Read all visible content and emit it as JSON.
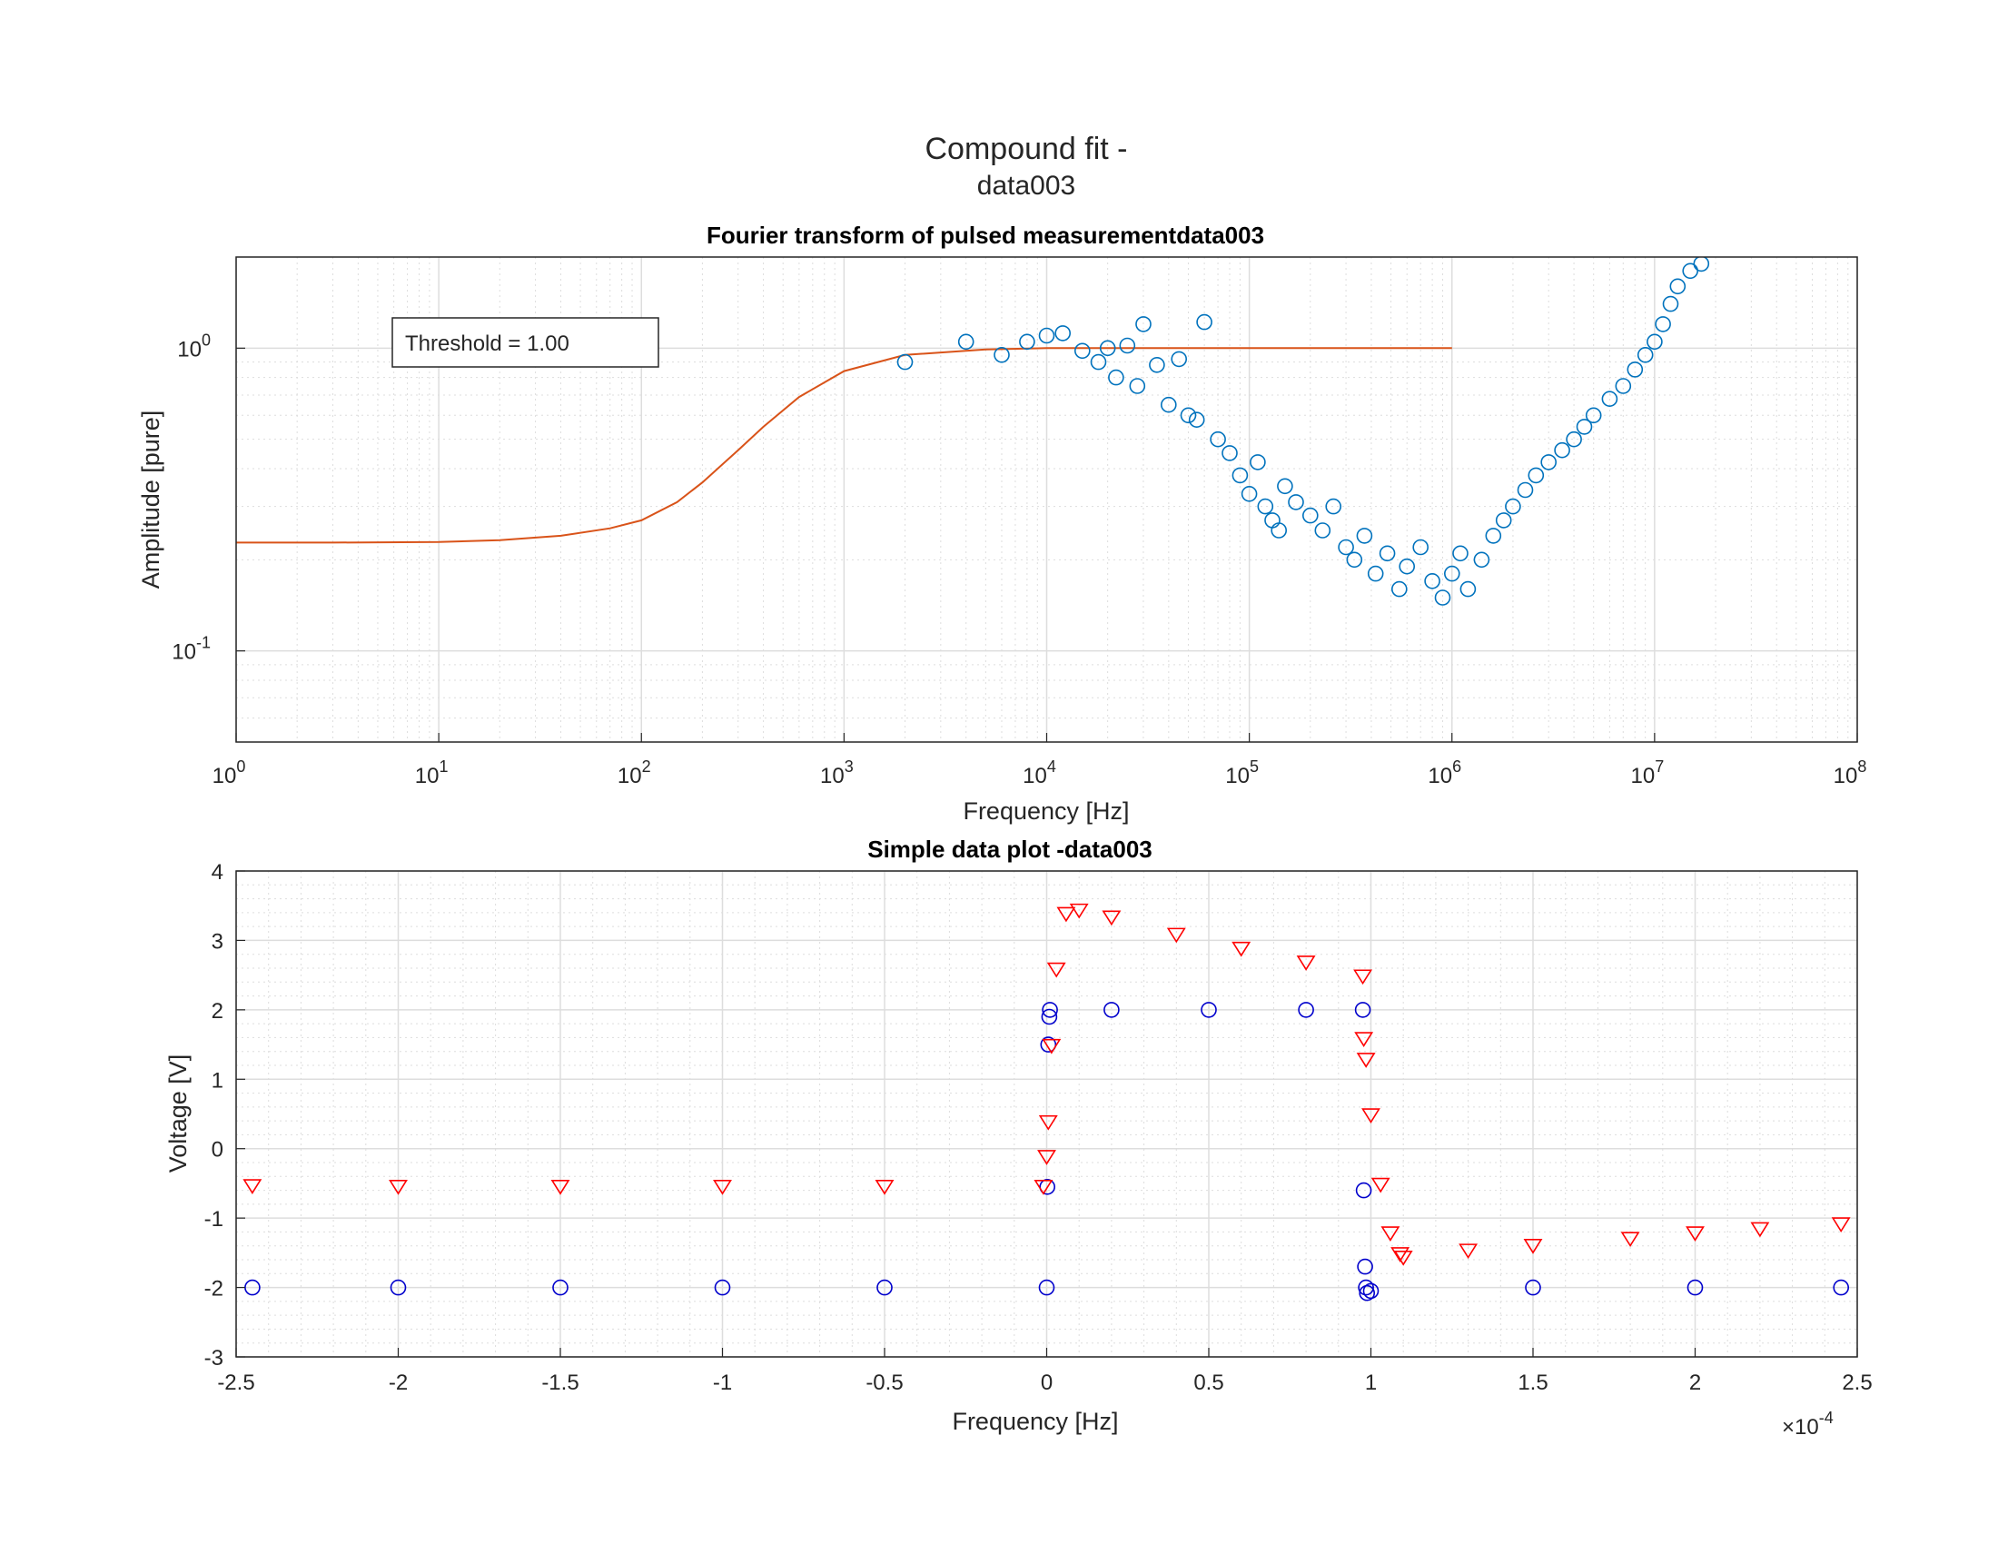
{
  "figure": {
    "suptitle_line1": "Compound fit -",
    "suptitle_line2": "data003",
    "colors": {
      "fft_markers": "#0072BD",
      "fit_curve": "#D95319",
      "series_input": "#0000CC",
      "series_output": "#FF0000",
      "grid": "#DDDDDD"
    }
  },
  "chart_data": [
    {
      "type": "scatter",
      "title": "Fourier transform of pulsed measurementdata003",
      "xlabel": "Frequency [Hz]",
      "ylabel": "Amplitude [pure]",
      "xscale": "log",
      "yscale": "log",
      "xlim": [
        1,
        100000000
      ],
      "ylim": [
        0.05,
        2.0
      ],
      "x_ticks": [
        {
          "base": "10",
          "exp": "0"
        },
        {
          "base": "10",
          "exp": "1"
        },
        {
          "base": "10",
          "exp": "2"
        },
        {
          "base": "10",
          "exp": "3"
        },
        {
          "base": "10",
          "exp": "4"
        },
        {
          "base": "10",
          "exp": "5"
        },
        {
          "base": "10",
          "exp": "6"
        },
        {
          "base": "10",
          "exp": "7"
        },
        {
          "base": "10",
          "exp": "8"
        }
      ],
      "y_ticks": [
        {
          "base": "10",
          "exp": "-1"
        },
        {
          "base": "10",
          "exp": "0"
        }
      ],
      "grid": true,
      "annotation": "Threshold = 1.00",
      "series": [
        {
          "kind": "fit_curve",
          "marker": "line",
          "color": "#D95319",
          "x": [
            1,
            3,
            10,
            20,
            40,
            70,
            100,
            150,
            200,
            300,
            400,
            600,
            1000,
            2000,
            5000,
            10000,
            100000,
            1000000
          ],
          "values": [
            0.228,
            0.228,
            0.229,
            0.232,
            0.24,
            0.254,
            0.27,
            0.31,
            0.36,
            0.46,
            0.55,
            0.69,
            0.84,
            0.95,
            0.99,
            1.0,
            1.0,
            1.0
          ]
        },
        {
          "kind": "fft_amplitude",
          "marker": "open-circle",
          "color": "#0072BD",
          "x": [
            2000,
            4000,
            6000,
            8000,
            10000,
            12000,
            15000,
            18000,
            20000,
            22000,
            25000,
            28000,
            30000,
            35000,
            40000,
            45000,
            50000,
            55000,
            60000,
            70000,
            80000,
            90000,
            100000,
            110000,
            120000,
            130000,
            140000,
            150000,
            170000,
            200000,
            230000,
            260000,
            300000,
            330000,
            370000,
            420000,
            480000,
            550000,
            600000,
            700000,
            800000,
            900000,
            1000000,
            1100000,
            1200000,
            1400000,
            1600000,
            1800000,
            2000000,
            2300000,
            2600000,
            3000000,
            3500000,
            4000000,
            4500000,
            5000000,
            6000000,
            7000000,
            8000000,
            9000000,
            10000000,
            11000000,
            12000000,
            13000000,
            15000000,
            17000000
          ],
          "values": [
            0.9,
            1.05,
            0.95,
            1.05,
            1.1,
            1.12,
            0.98,
            0.9,
            1.0,
            0.8,
            1.02,
            0.75,
            1.2,
            0.88,
            0.65,
            0.92,
            0.6,
            0.58,
            1.22,
            0.5,
            0.45,
            0.38,
            0.33,
            0.42,
            0.3,
            0.27,
            0.25,
            0.35,
            0.31,
            0.28,
            0.25,
            0.3,
            0.22,
            0.2,
            0.24,
            0.18,
            0.21,
            0.16,
            0.19,
            0.22,
            0.17,
            0.15,
            0.18,
            0.21,
            0.16,
            0.2,
            0.24,
            0.27,
            0.3,
            0.34,
            0.38,
            0.42,
            0.46,
            0.5,
            0.55,
            0.6,
            0.68,
            0.75,
            0.85,
            0.95,
            1.05,
            1.2,
            1.4,
            1.6,
            1.8,
            1.9
          ]
        }
      ]
    },
    {
      "type": "scatter",
      "title": "Simple data plot -data003",
      "xlabel": "Frequency [Hz]",
      "ylabel": "Voltage [V]",
      "xlim": [
        -0.00025,
        0.00025
      ],
      "ylim": [
        -3,
        4
      ],
      "x_ticks": [
        "-2.5",
        "-2",
        "-1.5",
        "-1",
        "-0.5",
        "0",
        "0.5",
        "1",
        "1.5",
        "2",
        "2.5"
      ],
      "y_ticks": [
        "-3",
        "-2",
        "-1",
        "0",
        "1",
        "2",
        "3",
        "4"
      ],
      "x_multiplier_base": "×10",
      "x_multiplier_exp": "-4",
      "grid": true,
      "series": [
        {
          "kind": "square_pulse",
          "marker": "open-circle",
          "color": "#0000CC",
          "x": [
            -0.000245,
            -0.0002,
            -0.00015,
            -0.0001,
            -5e-05,
            0.0,
            2e-07,
            5e-07,
            8e-07,
            1e-06,
            2e-05,
            5e-05,
            8e-05,
            9.75e-05,
            9.78e-05,
            9.82e-05,
            9.85e-05,
            9.88e-05,
            0.0001,
            0.00015,
            0.0002,
            0.000245
          ],
          "values": [
            -2.0,
            -2.0,
            -2.0,
            -2.0,
            -2.0,
            -2.0,
            -0.55,
            1.5,
            1.9,
            2.0,
            2.0,
            2.0,
            2.0,
            2.0,
            -0.6,
            -1.7,
            -2.0,
            -2.08,
            -2.05,
            -2.0,
            -2.0,
            -2.0
          ]
        },
        {
          "kind": "response",
          "marker": "open-triangle-down",
          "color": "#FF0000",
          "x": [
            -0.000245,
            -0.0002,
            -0.00015,
            -0.0001,
            -5e-05,
            -1e-06,
            0.0,
            5e-07,
            1.5e-06,
            3e-06,
            6e-06,
            1e-05,
            2e-05,
            4e-05,
            6e-05,
            8e-05,
            9.75e-05,
            9.78e-05,
            9.85e-05,
            0.0001,
            0.000103,
            0.000106,
            0.000109,
            0.00011,
            0.00013,
            0.00015,
            0.00018,
            0.0002,
            0.00022,
            0.000245
          ],
          "values": [
            -0.52,
            -0.53,
            -0.53,
            -0.53,
            -0.53,
            -0.53,
            -0.1,
            0.4,
            1.5,
            2.6,
            3.4,
            3.45,
            3.35,
            3.1,
            2.9,
            2.7,
            2.5,
            1.6,
            1.3,
            0.5,
            -0.5,
            -1.2,
            -1.5,
            -1.55,
            -1.45,
            -1.38,
            -1.28,
            -1.2,
            -1.14,
            -1.07
          ]
        }
      ]
    }
  ]
}
